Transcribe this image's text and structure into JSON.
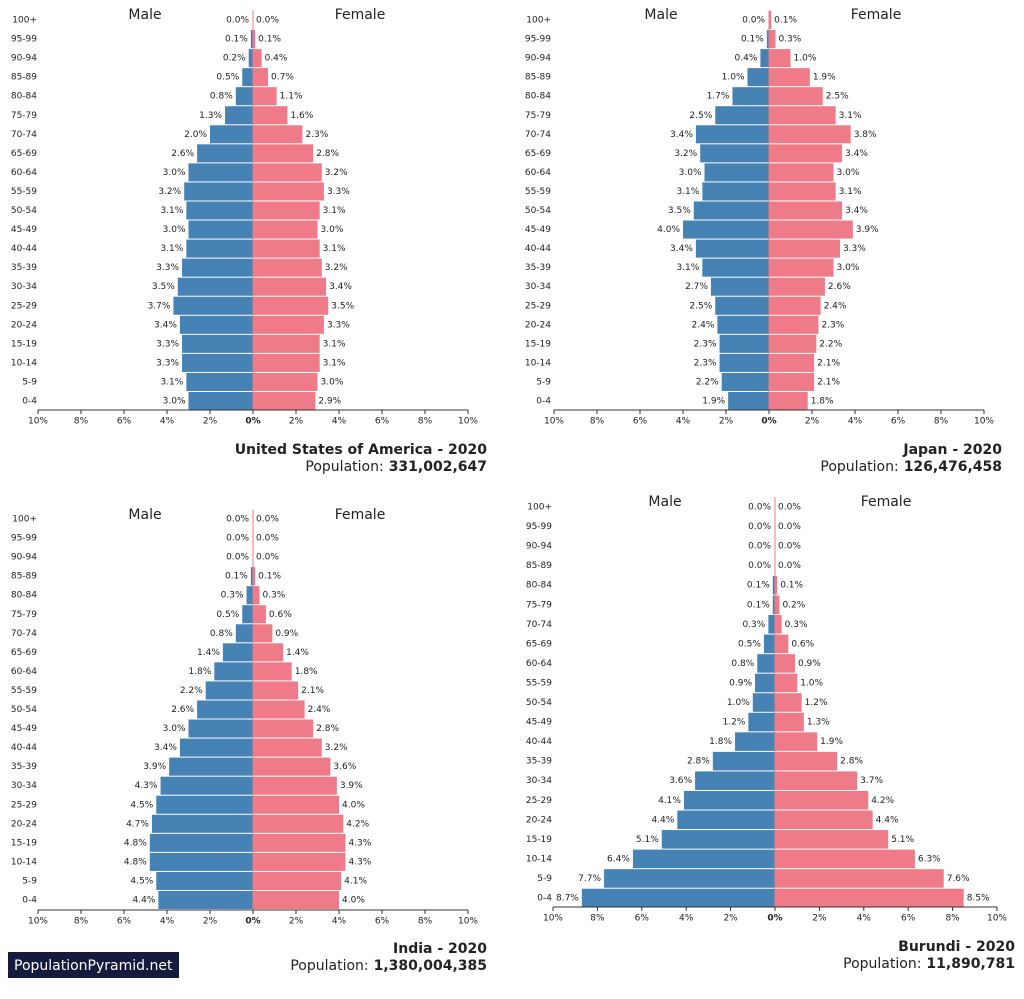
{
  "watermark": "PopulationPyramid.net",
  "chart_data": [
    {
      "type": "pyramid",
      "title": "United States of America - 2020",
      "population_label": "Population:",
      "population": "331,002,647",
      "categories": [
        "100+",
        "95-99",
        "90-94",
        "85-89",
        "80-84",
        "75-79",
        "70-74",
        "65-69",
        "60-64",
        "55-59",
        "50-54",
        "45-49",
        "40-44",
        "35-39",
        "30-34",
        "25-29",
        "20-24",
        "15-19",
        "10-14",
        "5-9",
        "0-4"
      ],
      "series": [
        {
          "name": "Male",
          "color": "#4682b4",
          "values": [
            0.0,
            0.1,
            0.2,
            0.5,
            0.8,
            1.3,
            2.0,
            2.6,
            3.0,
            3.2,
            3.1,
            3.0,
            3.1,
            3.3,
            3.5,
            3.7,
            3.4,
            3.3,
            3.3,
            3.1,
            3.0
          ],
          "value_labels": [
            "0.0%",
            "0.1%",
            "0.2%",
            "0.5%",
            "0.8%",
            "1.3%",
            "2.0%",
            "2.6%",
            "3.0%",
            "3.2%",
            "3.1%",
            "3.0%",
            "3.1%",
            "3.3%",
            "3.5%",
            "3.7%",
            "3.4%",
            "3.3%",
            "3.3%",
            "3.1%",
            "3.0%"
          ]
        },
        {
          "name": "Female",
          "color": "#f07b88",
          "values": [
            0.0,
            0.1,
            0.4,
            0.7,
            1.1,
            1.6,
            2.3,
            2.8,
            3.2,
            3.3,
            3.1,
            3.0,
            3.1,
            3.2,
            3.4,
            3.5,
            3.3,
            3.1,
            3.1,
            3.0,
            2.9
          ],
          "value_labels": [
            "0.0%",
            "0.1%",
            "0.4%",
            "0.7%",
            "1.1%",
            "1.6%",
            "2.3%",
            "2.8%",
            "3.2%",
            "3.3%",
            "3.1%",
            "3.0%",
            "3.1%",
            "3.2%",
            "3.4%",
            "3.5%",
            "3.3%",
            "3.1%",
            "3.1%",
            "3.0%",
            "2.9%"
          ]
        }
      ],
      "xlim": [
        -10,
        10
      ],
      "xticks": [
        {
          "value": -10,
          "label": "10%"
        },
        {
          "value": -8,
          "label": "8%"
        },
        {
          "value": -6,
          "label": "6%"
        },
        {
          "value": -4,
          "label": "4%"
        },
        {
          "value": -2,
          "label": "2%"
        },
        {
          "value": 0,
          "label": "0%"
        },
        {
          "value": 2,
          "label": "2%"
        },
        {
          "value": 4,
          "label": "4%"
        },
        {
          "value": 6,
          "label": "6%"
        },
        {
          "value": 8,
          "label": "8%"
        },
        {
          "value": 10,
          "label": "10%"
        }
      ]
    },
    {
      "type": "pyramid",
      "title": "Japan - 2020",
      "population_label": "Population:",
      "population": "126,476,458",
      "categories": [
        "100+",
        "95-99",
        "90-94",
        "85-89",
        "80-84",
        "75-79",
        "70-74",
        "65-69",
        "60-64",
        "55-59",
        "50-54",
        "45-49",
        "40-44",
        "35-39",
        "30-34",
        "25-29",
        "20-24",
        "15-19",
        "10-14",
        "5-9",
        "0-4"
      ],
      "series": [
        {
          "name": "Male",
          "color": "#4682b4",
          "values": [
            0.0,
            0.1,
            0.4,
            1.0,
            1.7,
            2.5,
            3.4,
            3.2,
            3.0,
            3.1,
            3.5,
            4.0,
            3.4,
            3.1,
            2.7,
            2.5,
            2.4,
            2.3,
            2.3,
            2.2,
            1.9
          ],
          "value_labels": [
            "0.0%",
            "0.1%",
            "0.4%",
            "1.0%",
            "1.7%",
            "2.5%",
            "3.4%",
            "3.2%",
            "3.0%",
            "3.1%",
            "3.5%",
            "4.0%",
            "3.4%",
            "3.1%",
            "2.7%",
            "2.5%",
            "2.4%",
            "2.3%",
            "2.3%",
            "2.2%",
            "1.9%"
          ]
        },
        {
          "name": "Female",
          "color": "#f07b88",
          "values": [
            0.1,
            0.3,
            1.0,
            1.9,
            2.5,
            3.1,
            3.8,
            3.4,
            3.0,
            3.1,
            3.4,
            3.9,
            3.3,
            3.0,
            2.6,
            2.4,
            2.3,
            2.2,
            2.1,
            2.1,
            1.8
          ],
          "value_labels": [
            "0.1%",
            "0.3%",
            "1.0%",
            "1.9%",
            "2.5%",
            "3.1%",
            "3.8%",
            "3.4%",
            "3.0%",
            "3.1%",
            "3.4%",
            "3.9%",
            "3.3%",
            "3.0%",
            "2.6%",
            "2.4%",
            "2.3%",
            "2.2%",
            "2.1%",
            "2.1%",
            "1.8%"
          ]
        }
      ],
      "xlim": [
        -10,
        10
      ],
      "xticks": [
        {
          "value": -10,
          "label": "10%"
        },
        {
          "value": -8,
          "label": "8%"
        },
        {
          "value": -6,
          "label": "6%"
        },
        {
          "value": -4,
          "label": "4%"
        },
        {
          "value": -2,
          "label": "2%"
        },
        {
          "value": 0,
          "label": "0%"
        },
        {
          "value": 2,
          "label": "2%"
        },
        {
          "value": 4,
          "label": "4%"
        },
        {
          "value": 6,
          "label": "6%"
        },
        {
          "value": 8,
          "label": "8%"
        },
        {
          "value": 10,
          "label": "10%"
        }
      ]
    },
    {
      "type": "pyramid",
      "title": "India - 2020",
      "population_label": "Population:",
      "population": "1,380,004,385",
      "categories": [
        "100+",
        "95-99",
        "90-94",
        "85-89",
        "80-84",
        "75-79",
        "70-74",
        "65-69",
        "60-64",
        "55-59",
        "50-54",
        "45-49",
        "40-44",
        "35-39",
        "30-34",
        "25-29",
        "20-24",
        "15-19",
        "10-14",
        "5-9",
        "0-4"
      ],
      "series": [
        {
          "name": "Male",
          "color": "#4682b4",
          "values": [
            0.0,
            0.0,
            0.0,
            0.1,
            0.3,
            0.5,
            0.8,
            1.4,
            1.8,
            2.2,
            2.6,
            3.0,
            3.4,
            3.9,
            4.3,
            4.5,
            4.7,
            4.8,
            4.8,
            4.5,
            4.4
          ],
          "value_labels": [
            "0.0%",
            "0.0%",
            "0.0%",
            "0.1%",
            "0.3%",
            "0.5%",
            "0.8%",
            "1.4%",
            "1.8%",
            "2.2%",
            "2.6%",
            "3.0%",
            "3.4%",
            "3.9%",
            "4.3%",
            "4.5%",
            "4.7%",
            "4.8%",
            "4.8%",
            "4.5%",
            "4.4%"
          ]
        },
        {
          "name": "Female",
          "color": "#f07b88",
          "values": [
            0.0,
            0.0,
            0.0,
            0.1,
            0.3,
            0.6,
            0.9,
            1.4,
            1.8,
            2.1,
            2.4,
            2.8,
            3.2,
            3.6,
            3.9,
            4.0,
            4.2,
            4.3,
            4.3,
            4.1,
            4.0
          ],
          "value_labels": [
            "0.0%",
            "0.0%",
            "0.0%",
            "0.1%",
            "0.3%",
            "0.6%",
            "0.9%",
            "1.4%",
            "1.8%",
            "2.1%",
            "2.4%",
            "2.8%",
            "3.2%",
            "3.6%",
            "3.9%",
            "4.0%",
            "4.2%",
            "4.3%",
            "4.3%",
            "4.1%",
            "4.0%"
          ]
        }
      ],
      "xlim": [
        -10,
        10
      ],
      "xticks": [
        {
          "value": -10,
          "label": "10%"
        },
        {
          "value": -8,
          "label": "8%"
        },
        {
          "value": -6,
          "label": "6%"
        },
        {
          "value": -4,
          "label": "4%"
        },
        {
          "value": -2,
          "label": "2%"
        },
        {
          "value": 0,
          "label": "0%"
        },
        {
          "value": 2,
          "label": "2%"
        },
        {
          "value": 4,
          "label": "4%"
        },
        {
          "value": 6,
          "label": "6%"
        },
        {
          "value": 8,
          "label": "8%"
        },
        {
          "value": 10,
          "label": "10%"
        }
      ]
    },
    {
      "type": "pyramid",
      "title": "Burundi - 2020",
      "population_label": "Population:",
      "population": "11,890,781",
      "categories": [
        "100+",
        "95-99",
        "90-94",
        "85-89",
        "80-84",
        "75-79",
        "70-74",
        "65-69",
        "60-64",
        "55-59",
        "50-54",
        "45-49",
        "40-44",
        "35-39",
        "30-34",
        "25-29",
        "20-24",
        "15-19",
        "10-14",
        "5-9",
        "0-4"
      ],
      "series": [
        {
          "name": "Male",
          "color": "#4682b4",
          "values": [
            0.0,
            0.0,
            0.0,
            0.0,
            0.1,
            0.1,
            0.3,
            0.5,
            0.8,
            0.9,
            1.0,
            1.2,
            1.8,
            2.8,
            3.6,
            4.1,
            4.4,
            5.1,
            6.4,
            7.7,
            8.7
          ],
          "value_labels": [
            "0.0%",
            "0.0%",
            "0.0%",
            "0.0%",
            "0.1%",
            "0.1%",
            "0.3%",
            "0.5%",
            "0.8%",
            "0.9%",
            "1.0%",
            "1.2%",
            "1.8%",
            "2.8%",
            "3.6%",
            "4.1%",
            "4.4%",
            "5.1%",
            "6.4%",
            "7.7%",
            "8.7%"
          ]
        },
        {
          "name": "Female",
          "color": "#f07b88",
          "values": [
            0.0,
            0.0,
            0.0,
            0.0,
            0.1,
            0.2,
            0.3,
            0.6,
            0.9,
            1.0,
            1.2,
            1.3,
            1.9,
            2.8,
            3.7,
            4.2,
            4.4,
            5.1,
            6.3,
            7.6,
            8.5
          ],
          "value_labels": [
            "0.0%",
            "0.0%",
            "0.0%",
            "0.0%",
            "0.1%",
            "0.2%",
            "0.3%",
            "0.6%",
            "0.9%",
            "1.0%",
            "1.2%",
            "1.3%",
            "1.9%",
            "2.8%",
            "3.7%",
            "4.2%",
            "4.4%",
            "5.1%",
            "6.3%",
            "7.6%",
            "8.5%"
          ]
        }
      ],
      "xlim": [
        -10,
        10
      ],
      "xticks": [
        {
          "value": -10,
          "label": "10%"
        },
        {
          "value": -8,
          "label": "8%"
        },
        {
          "value": -6,
          "label": "6%"
        },
        {
          "value": -4,
          "label": "4%"
        },
        {
          "value": -2,
          "label": "2%"
        },
        {
          "value": 0,
          "label": "0%"
        },
        {
          "value": 2,
          "label": "2%"
        },
        {
          "value": 4,
          "label": "4%"
        },
        {
          "value": 6,
          "label": "6%"
        },
        {
          "value": 8,
          "label": "8%"
        },
        {
          "value": 10,
          "label": "10%"
        }
      ]
    }
  ]
}
